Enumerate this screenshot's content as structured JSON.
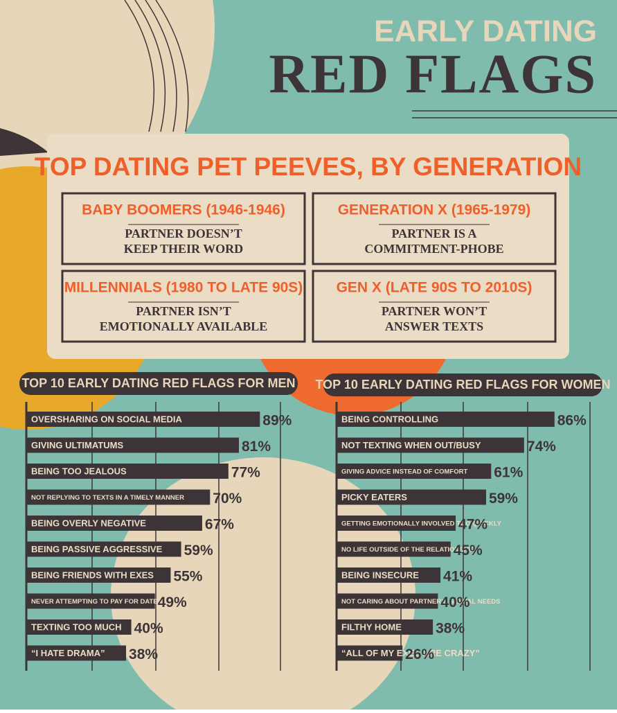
{
  "header": {
    "kicker": "EARLY DATING",
    "title": "RED FLAGS"
  },
  "peeves": {
    "title": "TOP DATING PET PEEVES, BY GENERATION",
    "boxes": [
      {
        "heading": "BABY BOOMERS (1946-1946)",
        "lines": [
          "PARTNER DOESN’T",
          "KEEP THEIR WORD"
        ]
      },
      {
        "heading": "GENERATION X (1965-1979)",
        "lines": [
          "PARTNER IS A",
          "COMMITMENT-PHOBE"
        ]
      },
      {
        "heading": "MILLENNIALS (1980 TO LATE 90S)",
        "lines": [
          "PARTNER ISN’T",
          "EMOTIONALLY AVAILABLE"
        ]
      },
      {
        "heading": "GEN X (LATE 90S TO 2010S)",
        "lines": [
          "PARTNER WON’T",
          "ANSWER TEXTS"
        ]
      }
    ]
  },
  "chart_data": [
    {
      "type": "bar",
      "orientation": "horizontal",
      "title": "TOP 10 EARLY DATING RED FLAGS FOR MEN",
      "categories": [
        "OVERSHARING ON SOCIAL MEDIA",
        "GIVING ULTIMATUMS",
        "BEING TOO JEALOUS",
        "NOT REPLYING TO TEXTS IN A TIMELY MANNER",
        "BEING OVERLY NEGATIVE",
        "BEING PASSIVE AGGRESSIVE",
        "BEING FRIENDS WITH EXES",
        "NEVER ATTEMPTING TO PAY FOR DATES",
        "TEXTING TOO MUCH",
        "“I HATE DRAMA”"
      ],
      "values": [
        89,
        81,
        77,
        70,
        67,
        59,
        55,
        49,
        40,
        38
      ],
      "value_labels": [
        "89%",
        "81%",
        "77%",
        "70%",
        "67%",
        "59%",
        "55%",
        "49%",
        "40%",
        "38%"
      ],
      "color": "#3d3438",
      "xlim": [
        0,
        100
      ]
    },
    {
      "type": "bar",
      "orientation": "horizontal",
      "title": "TOP 10 EARLY DATING RED FLAGS FOR WOMEN",
      "categories": [
        "BEING CONTROLLING",
        "NOT TEXTING WHEN OUT/BUSY",
        "GIVING ADVICE INSTEAD OF COMFORT",
        "PICKY EATERS",
        "GETTING EMOTIONALLY INVOLVED TOO QUICKLY",
        "NO LIFE OUTSIDE OF THE RELATIONSHIP",
        "BEING INSECURE",
        "NOT CARING ABOUT PARTNER’S SEXUAL NEEDS",
        "FILTHY HOME",
        "“ALL OF MY EXES ARE CRAZY”"
      ],
      "values": [
        86,
        74,
        61,
        59,
        47,
        45,
        41,
        40,
        38,
        26
      ],
      "value_labels": [
        "86%",
        "74%",
        "61%",
        "59%",
        "47%",
        "45%",
        "41%",
        "40%",
        "38%",
        "26%"
      ],
      "color": "#3d3438",
      "xlim": [
        0,
        100
      ]
    }
  ]
}
